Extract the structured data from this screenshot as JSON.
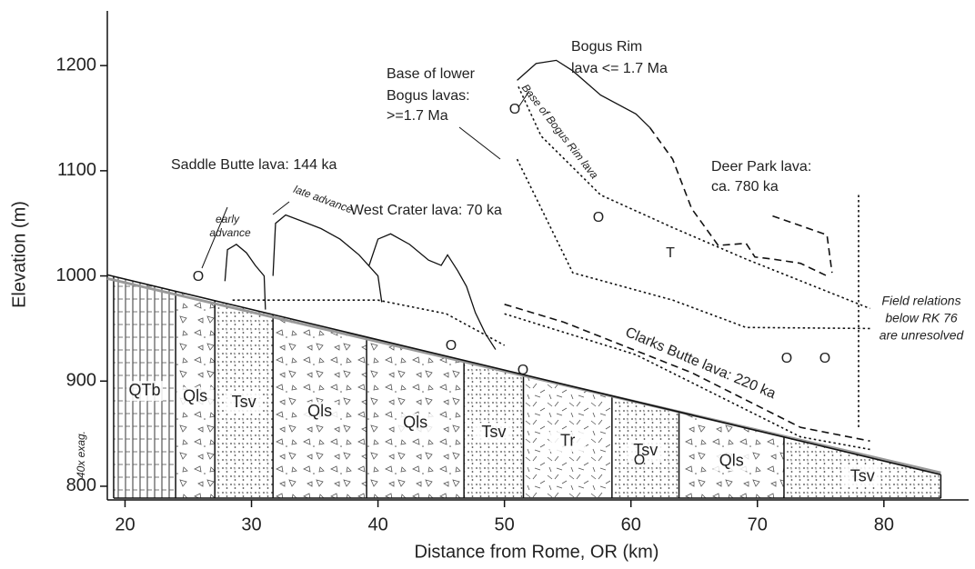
{
  "chart_data": {
    "type": "line",
    "xlabel": "Distance from Rome, OR (km)",
    "ylabel": "Elevation (m)",
    "xlim": [
      18.6,
      86.7
    ],
    "ylim": [
      787,
      1252
    ],
    "xticks": [
      20,
      30,
      40,
      50,
      60,
      70,
      80
    ],
    "yticks": [
      800,
      900,
      1000,
      1100,
      1200
    ],
    "series": [
      {
        "color": "#111111",
        "style": "solid",
        "x": [
          27.9,
          28.1,
          28.8,
          29.6,
          30.3,
          31.0,
          31.1
        ],
        "y": [
          995,
          1025,
          1030,
          1022,
          1010,
          1000,
          968
        ]
      },
      {
        "color": "#111111",
        "style": "solid",
        "x": [
          31.7,
          31.9,
          32.7,
          34.0,
          35.5,
          37.0,
          38.5,
          40.0,
          40.3
        ],
        "y": [
          1000,
          1050,
          1058,
          1052,
          1045,
          1035,
          1020,
          1000,
          975
        ]
      },
      {
        "color": "#111111",
        "style": "solid",
        "x": [
          39.3,
          40.0,
          41.0,
          42.5,
          44.0,
          45.0,
          45.5,
          46.3,
          47.0,
          47.7,
          48.5,
          49.3
        ],
        "y": [
          1010,
          1035,
          1040,
          1030,
          1015,
          1010,
          1020,
          1005,
          990,
          965,
          945,
          930
        ]
      },
      {
        "color": "#111111",
        "style": "dotted",
        "x": [
          28.5,
          40.0,
          45.4,
          50.0
        ],
        "y": [
          977,
          977,
          964,
          934
        ]
      },
      {
        "color": "#111111",
        "style": "solid",
        "x": [
          51.0,
          52.5,
          54.1,
          55.4,
          57.6,
          60.4,
          61.5
        ],
        "y": [
          1186,
          1202,
          1205,
          1195,
          1172,
          1154,
          1141
        ]
      },
      {
        "color": "#111111",
        "style": "dashed",
        "x": [
          61.5,
          63.3,
          64.8,
          66.9,
          69.1,
          69.8,
          71.2,
          73.4,
          75.5
        ],
        "y": [
          1141,
          1111,
          1064,
          1029,
          1031,
          1018,
          1016,
          1012,
          1000
        ]
      },
      {
        "color": "#111111",
        "style": "dotted",
        "x": [
          51.1,
          52.9,
          57.6,
          63.3,
          69.1,
          78.9
        ],
        "y": [
          1180,
          1133,
          1077,
          1046,
          1016,
          969
        ]
      },
      {
        "color": "#111111",
        "style": "dotted",
        "x": [
          51.0,
          55.4,
          63.3,
          69.1,
          78.9
        ],
        "y": [
          1111,
          1003,
          977,
          951,
          950
        ]
      },
      {
        "color": "#111111",
        "style": "dashed",
        "x": [
          71.2,
          75.5,
          75.9
        ],
        "y": [
          1057,
          1039,
          1003
        ]
      },
      {
        "color": "#111111",
        "style": "dashed",
        "x": [
          50.0,
          54.7,
          64.8,
          73.4,
          78.9
        ],
        "y": [
          973,
          956,
          908,
          856,
          843
        ]
      },
      {
        "color": "#111111",
        "style": "dotted",
        "x": [
          50.0,
          60.4,
          73.4,
          78.9
        ],
        "y": [
          964,
          925,
          847,
          835
        ]
      },
      {
        "color": "#111111",
        "style": "dotted",
        "x": [
          78.0,
          78.0
        ],
        "y": [
          1077,
          856
        ]
      }
    ],
    "section": {
      "surface": {
        "x": [
          18.6,
          84.5
        ],
        "y": [
          1001,
          811
        ]
      },
      "contacts": [
        19.1,
        24.0,
        27.1,
        31.7,
        39.1,
        46.8,
        51.5,
        58.5,
        63.8,
        72.1,
        84.5
      ],
      "units": [
        "QTb",
        "Qls",
        "Tsv",
        "Qls",
        "Qls",
        "Tsv",
        "Tr",
        "Tsv",
        "Qls",
        "Tsv"
      ]
    },
    "annotations": [
      "Bogus Rim",
      "lava <= 1.7 Ma",
      "Base of lower",
      "Bogus lavas:",
      ">=1.7 Ma",
      "Saddle Butte lava: 144 ka",
      "West Crater lava: 70 ka",
      "Deer Park lava:",
      "ca. 780 ka",
      "Clarks Butte lava: 220 ka",
      "late advance",
      "early",
      "advance",
      "Base of Bogus Rim lava",
      "Field relations",
      "below RK 76",
      "are unresolved",
      "40x exag."
    ],
    "marker_labels": [
      "O",
      "O",
      "O",
      "O",
      "O",
      "O",
      "O",
      "O",
      "T"
    ]
  }
}
